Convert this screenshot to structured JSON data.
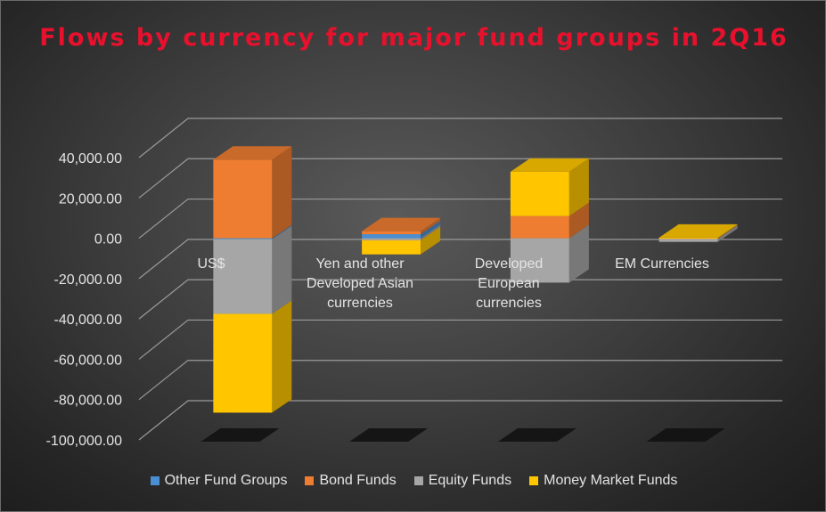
{
  "chart_data": {
    "type": "bar",
    "stacked": true,
    "three_d": true,
    "title": "Flows by currency for major fund groups in 2Q16",
    "categories": [
      "US$",
      "Yen and other Developed Asian currencies",
      "Developed European currencies",
      "EM Currencies"
    ],
    "category_labels": [
      [
        "US$"
      ],
      [
        "Yen and other",
        "Developed Asian",
        "currencies"
      ],
      [
        "Developed",
        "European",
        "currencies"
      ],
      [
        "EM Currencies"
      ]
    ],
    "series": [
      {
        "name": "Other Fund Groups",
        "color": "#4a8fd1",
        "values": [
          -500,
          2000,
          0,
          0
        ]
      },
      {
        "name": "Bond Funds",
        "color": "#ee7d31",
        "values": [
          39000,
          1500,
          11000,
          -300
        ]
      },
      {
        "name": "Equity Funds",
        "color": "#a6a6a6",
        "values": [
          -37000,
          -1000,
          -22000,
          -1500
        ]
      },
      {
        "name": "Money Market Funds",
        "color": "#ffc600",
        "values": [
          -49000,
          -7000,
          22000,
          300
        ]
      }
    ],
    "y_ticks": [
      "40,000.00",
      "20,000.00",
      "0.00",
      "-20,000.00",
      "-40,000.00",
      "-60,000.00",
      "-80,000.00",
      "-100,000.00"
    ],
    "y_tick_values": [
      40000,
      20000,
      0,
      -20000,
      -40000,
      -60000,
      -80000,
      -100000
    ],
    "ylim": [
      -100000,
      40000
    ],
    "grid": true,
    "legend_position": "bottom"
  }
}
